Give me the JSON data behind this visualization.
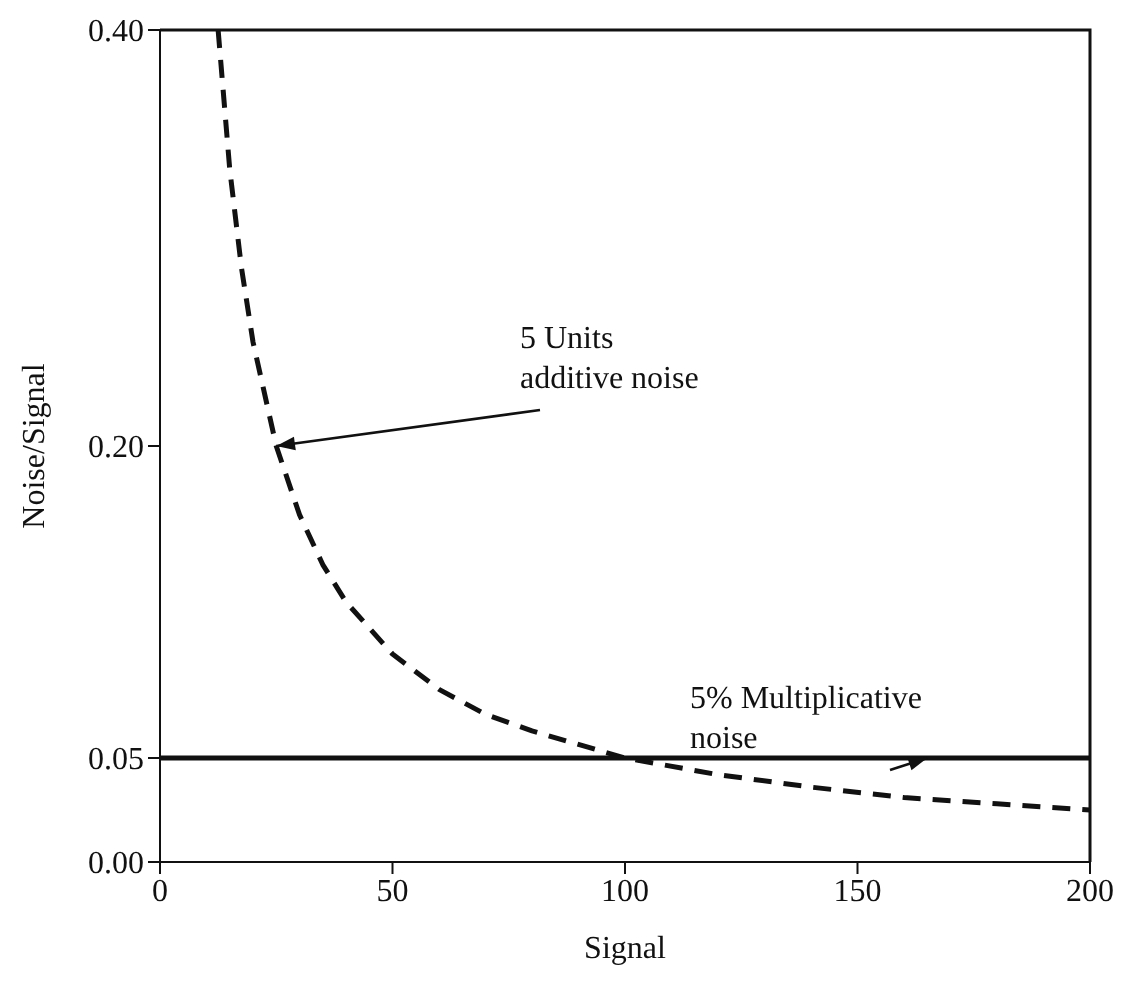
{
  "chart_data": {
    "type": "line",
    "xlabel": "Signal",
    "ylabel": "Noise/Signal",
    "xlim": [
      0,
      200
    ],
    "xticks": [
      0,
      50,
      100,
      150,
      200
    ],
    "ylim": [
      0,
      0.4
    ],
    "yticks": [
      {
        "value": 0,
        "label": "0.00"
      },
      {
        "value": 0.05,
        "label": "0.05"
      },
      {
        "value": 0.2,
        "label": "0.20"
      },
      {
        "value": 0.4,
        "label": "0.40"
      }
    ],
    "grid": false,
    "marker": "none",
    "series": [
      {
        "color": "#111111",
        "line_style": "dashed",
        "x": [
          12.5,
          15,
          17.5,
          20,
          25,
          30,
          35,
          40,
          50,
          60,
          70,
          80,
          100,
          120,
          140,
          160,
          180,
          200
        ],
        "values": [
          0.4,
          0.333,
          0.286,
          0.25,
          0.2,
          0.167,
          0.143,
          0.125,
          0.1,
          0.083,
          0.071,
          0.063,
          0.05,
          0.042,
          0.036,
          0.031,
          0.028,
          0.025
        ]
      },
      {
        "color": "#111111",
        "line_style": "solid",
        "x": [
          0,
          200
        ],
        "values": [
          0.05,
          0.05
        ]
      }
    ],
    "annotations": [
      {
        "text": "5 Units additive noise",
        "x": 25,
        "y": 0.2
      },
      {
        "text": "5% Multiplicative noise",
        "x": 165,
        "y": 0.05
      }
    ]
  }
}
